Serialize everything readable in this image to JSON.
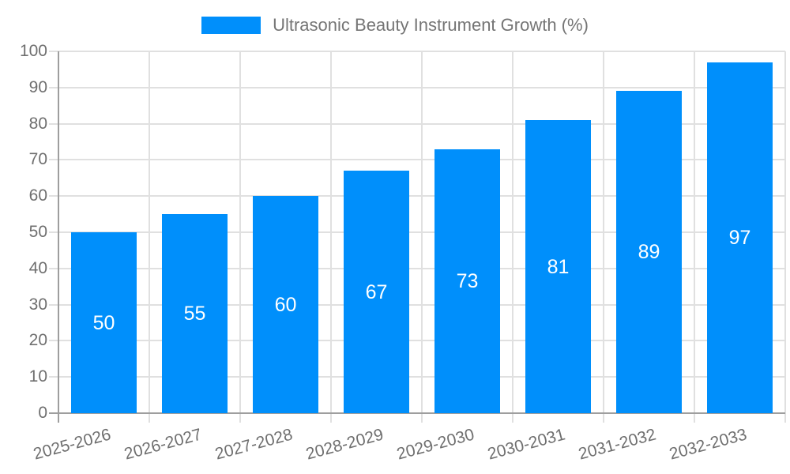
{
  "legend": {
    "label": "Ultrasonic Beauty Instrument Growth (%)"
  },
  "colors": {
    "bar": "#008FFB",
    "grid": "#e0e0e0",
    "axis": "#9e9e9e",
    "tick_text": "#6f6f6f",
    "legend_text": "#757575",
    "value_text": "#ffffff"
  },
  "chart_data": {
    "type": "bar",
    "title": "",
    "legend_entries": [
      "Ultrasonic Beauty Instrument Growth (%)"
    ],
    "legend_position": "top-center",
    "categories": [
      "2025-2026",
      "2026-2027",
      "2027-2028",
      "2028-2029",
      "2029-2030",
      "2030-2031",
      "2031-2032",
      "2032-2033"
    ],
    "values": [
      50,
      55,
      60,
      67,
      73,
      81,
      89,
      97
    ],
    "value_labels_shown": true,
    "xlabel": "",
    "ylabel": "",
    "ylim": [
      0,
      100
    ],
    "ytick_step": 10,
    "yticks": [
      0,
      10,
      20,
      30,
      40,
      50,
      60,
      70,
      80,
      90,
      100
    ],
    "grid": true,
    "x_label_rotation_deg": -15
  }
}
